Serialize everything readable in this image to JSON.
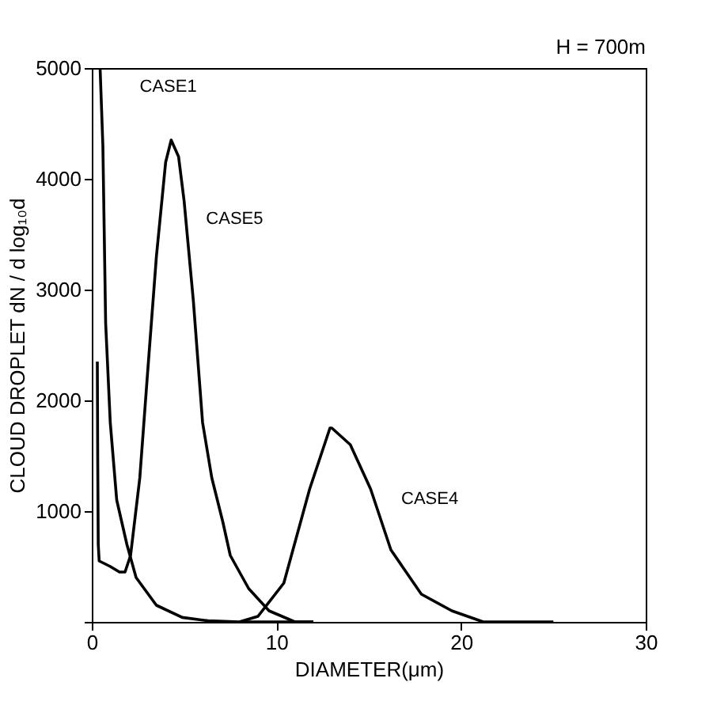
{
  "chart_data": {
    "type": "line",
    "xlabel": "DIAMETER(μm)",
    "ylabel": "CLOUD DROPLET dN / d log₁₀d",
    "annotations": [
      "H = 700m"
    ],
    "xlim": [
      0,
      30
    ],
    "ylim": [
      0,
      5000
    ],
    "xticks": [
      0,
      10,
      20,
      30
    ],
    "yticks": [
      {
        "value": 0,
        "label": null
      },
      1000,
      2000,
      3000,
      4000,
      5000
    ],
    "grid": false,
    "line_style": "solid",
    "marker": "none",
    "series": [
      {
        "name": "CASE1",
        "color": "#000000",
        "x": [
          0.45,
          0.6,
          0.75,
          1.0,
          1.35,
          1.9,
          2.4,
          3.5,
          4.9,
          6.3,
          8,
          12
        ],
        "values": [
          5000,
          4300,
          2700,
          1800,
          1100,
          700,
          400,
          150,
          40,
          10,
          0,
          0
        ]
      },
      {
        "name": "CASE5",
        "color": "#000000",
        "x": [
          0.3,
          0.32,
          0.35,
          0.4,
          1.0,
          1.5,
          1.8,
          2.1,
          2.6,
          3.0,
          3.5,
          4.0,
          4.3,
          4.7,
          5.0,
          5.5,
          6.0,
          6.5,
          7.1,
          7.5,
          8.5,
          9.6,
          11,
          12
        ],
        "values": [
          2350,
          1500,
          700,
          550,
          500,
          450,
          450,
          600,
          1300,
          2200,
          3300,
          4150,
          4350,
          4200,
          3800,
          2900,
          1800,
          1300,
          900,
          600,
          300,
          100,
          0,
          0
        ]
      },
      {
        "name": "CASE4",
        "color": "#000000",
        "x": [
          8,
          9.0,
          10.4,
          11.8,
          12.9,
          13.0,
          14.0,
          15.1,
          16.2,
          17.85,
          19.5,
          21.2,
          25
        ],
        "values": [
          0,
          50,
          350,
          1200,
          1750,
          1750,
          1600,
          1200,
          650,
          250,
          100,
          0,
          0
        ]
      }
    ]
  }
}
